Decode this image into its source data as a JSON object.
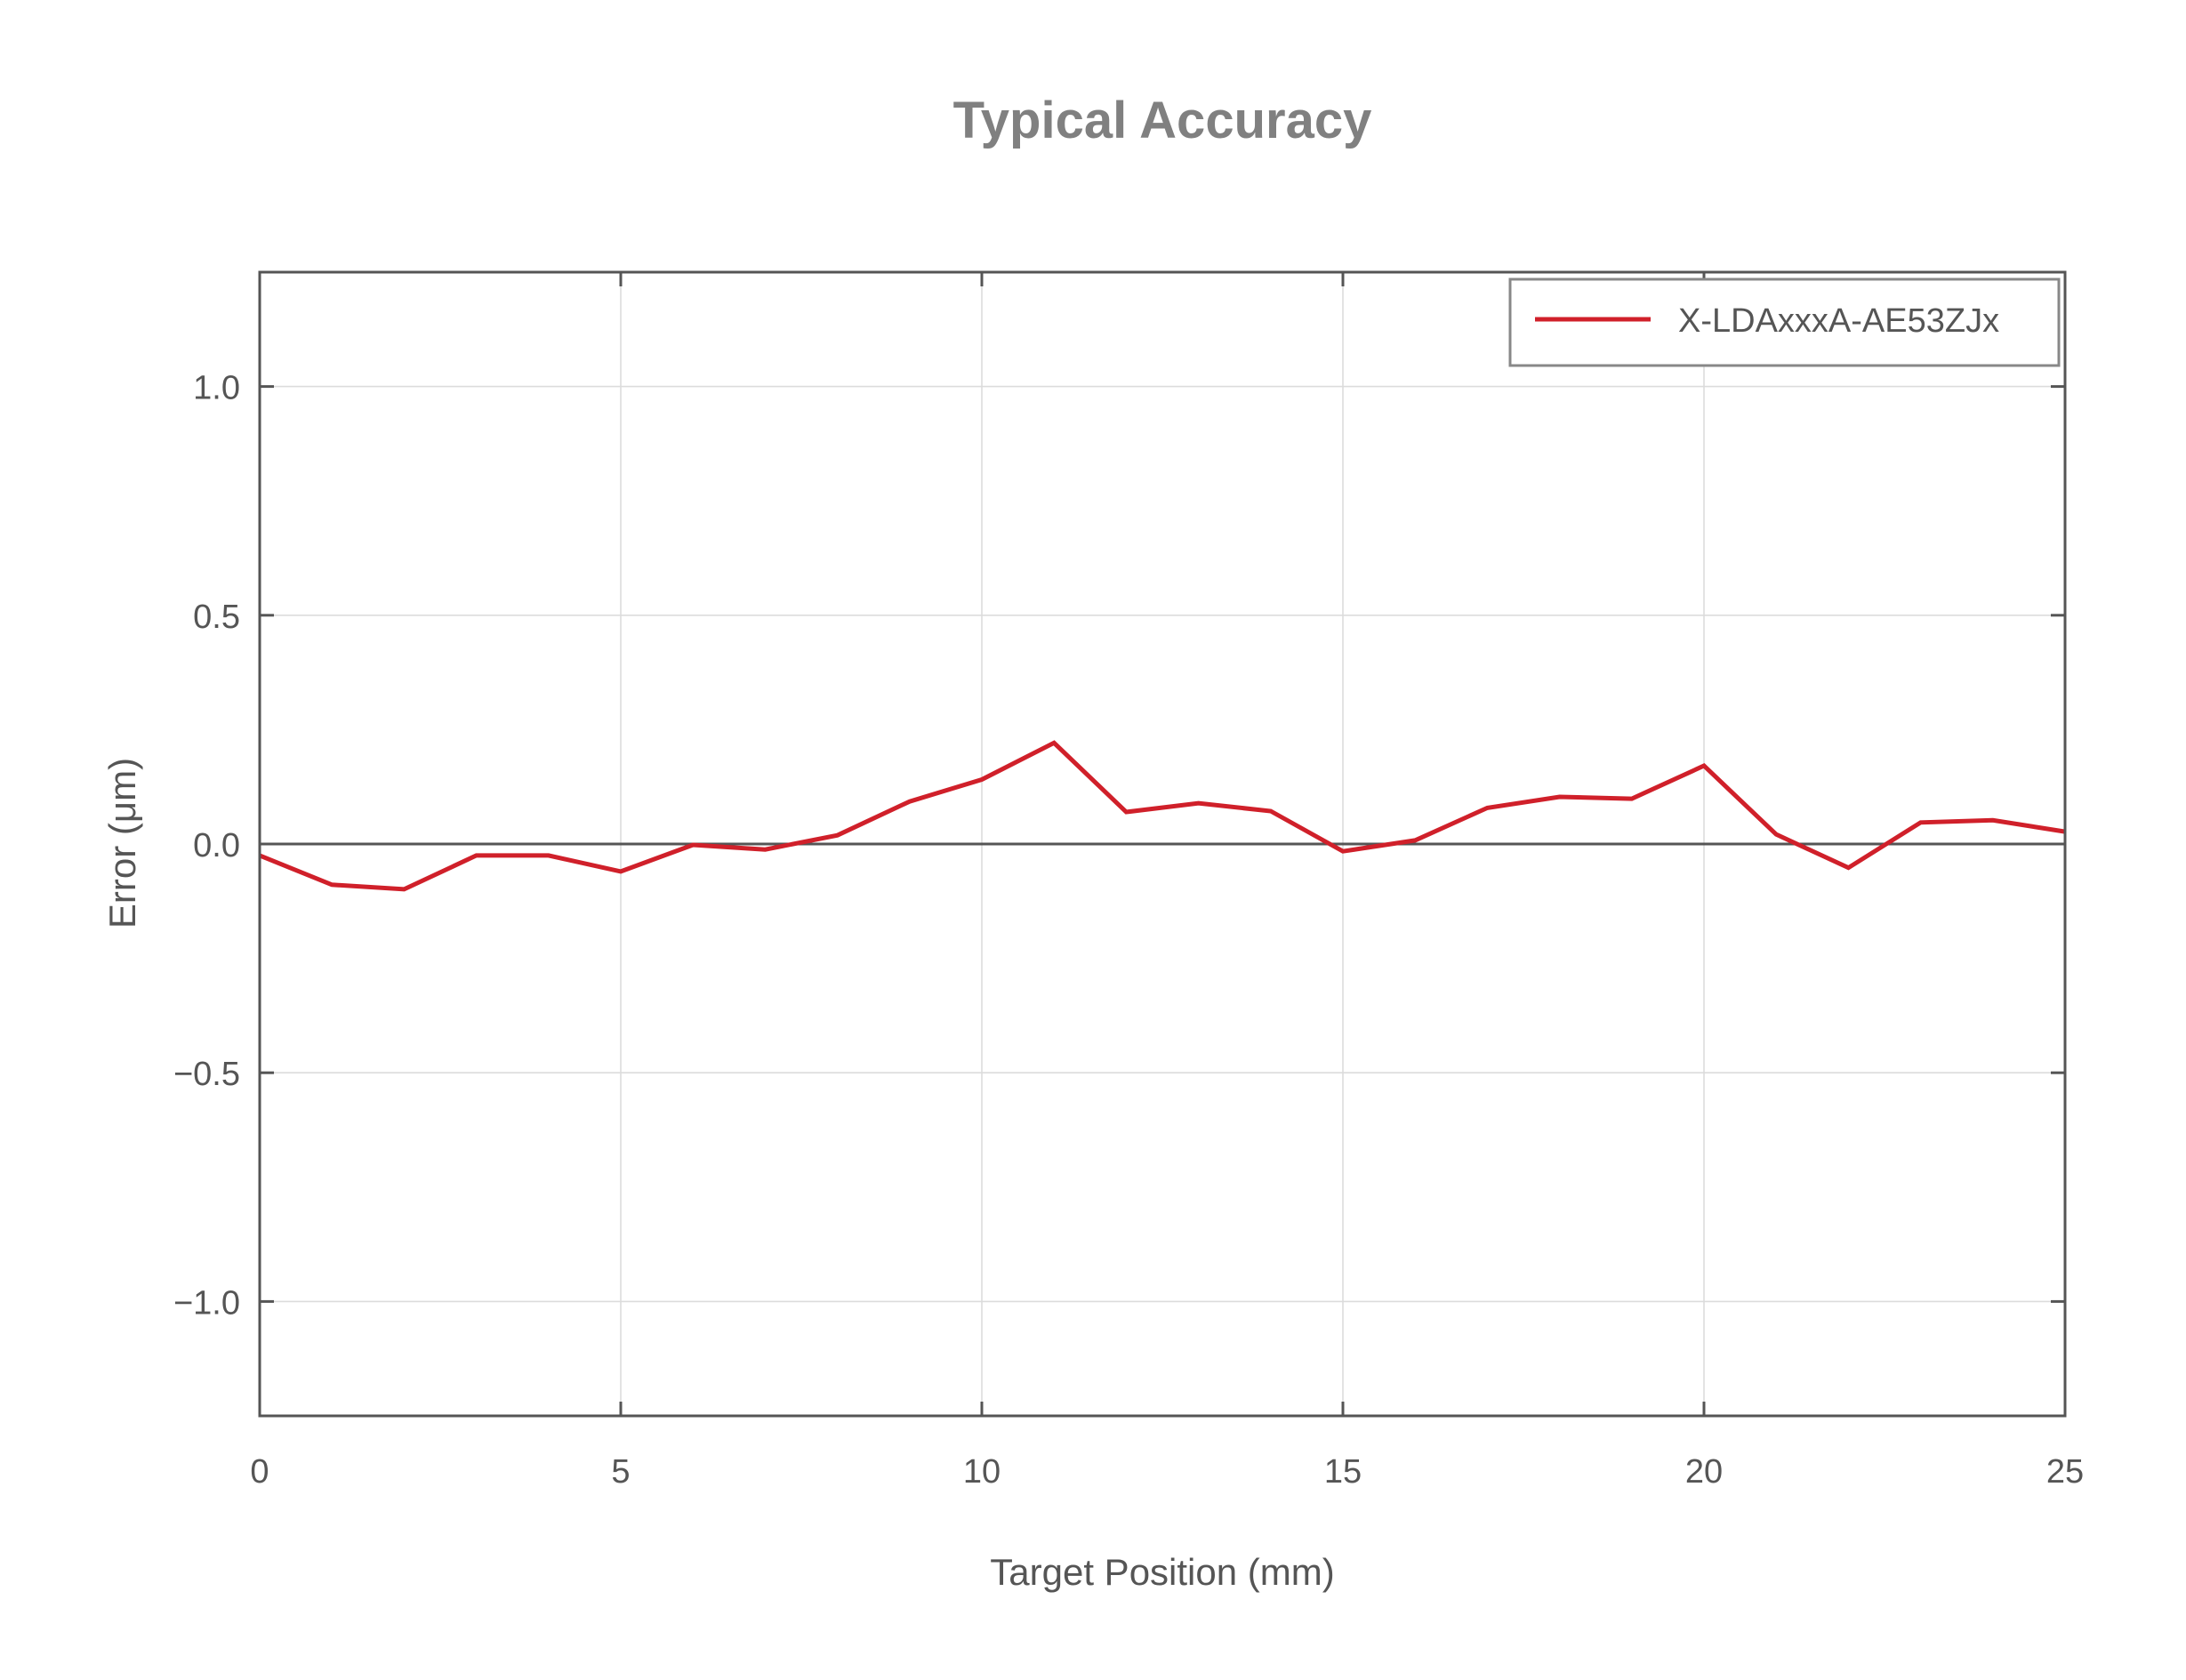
{
  "chart_data": {
    "type": "line",
    "title": "Typical Accuracy",
    "xlabel": "Target Position (mm)",
    "ylabel": "Error (μm)",
    "xlim": [
      0,
      25
    ],
    "ylim": [
      -1.25,
      1.25
    ],
    "xticks": [
      0,
      5,
      10,
      15,
      20,
      25
    ],
    "xtick_labels": [
      "0",
      "5",
      "10",
      "15",
      "20",
      "25"
    ],
    "yticks": [
      -1.0,
      -0.5,
      0.0,
      0.5,
      1.0
    ],
    "ytick_labels": [
      "−1.0",
      "−0.5",
      "0.0",
      "0.5",
      "1.0"
    ],
    "grid": true,
    "zero_line": true,
    "legend_position": "upper right",
    "x": [
      0,
      1,
      2,
      3,
      4,
      5,
      6,
      7,
      8,
      9,
      10,
      11,
      12,
      13,
      14,
      15,
      16,
      17,
      18,
      19,
      20,
      21,
      22,
      23,
      24,
      25
    ],
    "series": [
      {
        "name": "X-LDAxxxA-AE53ZJx",
        "color": "#d0202a",
        "values": [
          -0.025,
          -0.089,
          -0.099,
          -0.025,
          -0.025,
          -0.06,
          -0.002,
          -0.012,
          0.019,
          0.093,
          0.141,
          0.221,
          0.07,
          0.089,
          0.072,
          -0.016,
          0.008,
          0.079,
          0.103,
          0.099,
          0.171,
          0.021,
          -0.052,
          0.047,
          0.052,
          0.027
        ]
      }
    ]
  },
  "colors": {
    "title": "#808080",
    "text": "#555555",
    "axis": "#555555",
    "grid": "#dcdcdc",
    "legend_border": "#888888"
  }
}
